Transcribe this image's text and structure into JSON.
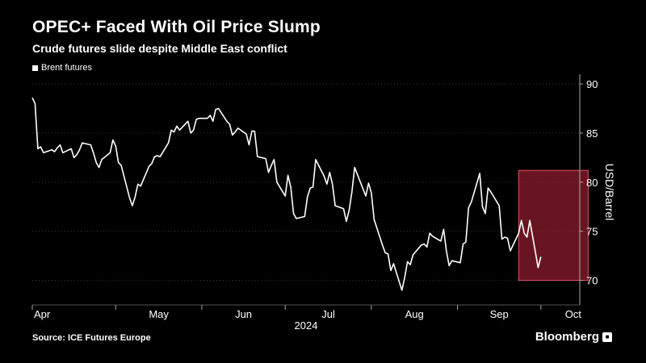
{
  "title": "OPEC+ Faced With Oil Price Slump",
  "subtitle": "Crude futures slide despite Middle East conflict",
  "source": "Source: ICE Futures Europe",
  "brand": "Bloomberg",
  "colors": {
    "background": "#000000",
    "line": "#ffffff",
    "grid": "#3a3a3a",
    "highlight_fill": "#8c1c2c",
    "highlight_stroke": "#e0506a"
  },
  "chart_data": {
    "type": "line",
    "title": "OPEC+ Faced With Oil Price Slump",
    "subtitle": "Crude futures slide despite Middle East conflict",
    "ylabel": "USD/Barrel",
    "xlabel": "2024",
    "ylim": [
      67.5,
      90.5
    ],
    "y_ticks": [
      70,
      75,
      80,
      85,
      90
    ],
    "y_axis_side": "right",
    "grid": "horizontal dotted",
    "legend_placement": "top-left",
    "x_tick_labels": [
      {
        "label": "Apr",
        "date": "2024-04-01"
      },
      {
        "label": "May",
        "date": "2024-05-01"
      },
      {
        "label": "Jun",
        "date": "2024-06-01"
      },
      {
        "label": "Jul",
        "date": "2024-07-01"
      },
      {
        "label": "Aug",
        "date": "2024-08-01"
      },
      {
        "label": "Sep",
        "date": "2024-09-01"
      },
      {
        "label": "Oct",
        "date": "2024-10-01"
      }
    ],
    "x_range": [
      "2024-04-01",
      "2024-10-15"
    ],
    "highlight": {
      "x_start": "2024-09-23",
      "x_end": "2024-10-18",
      "y_start": 70.0,
      "y_end": 81.2
    },
    "series": [
      {
        "name": "Brent futures",
        "color": "#ffffff",
        "points": [
          [
            "2024-04-01",
            88.6
          ],
          [
            "2024-04-02",
            88.0
          ],
          [
            "2024-04-03",
            83.4
          ],
          [
            "2024-04-04",
            83.6
          ],
          [
            "2024-04-05",
            83.0
          ],
          [
            "2024-04-08",
            83.3
          ],
          [
            "2024-04-09",
            83.1
          ],
          [
            "2024-04-10",
            83.5
          ],
          [
            "2024-04-11",
            83.8
          ],
          [
            "2024-04-12",
            83.0
          ],
          [
            "2024-04-15",
            83.4
          ],
          [
            "2024-04-16",
            82.5
          ],
          [
            "2024-04-17",
            82.8
          ],
          [
            "2024-04-18",
            83.3
          ],
          [
            "2024-04-19",
            84.0
          ],
          [
            "2024-04-22",
            83.8
          ],
          [
            "2024-04-23",
            83.0
          ],
          [
            "2024-04-24",
            82.0
          ],
          [
            "2024-04-25",
            81.5
          ],
          [
            "2024-04-26",
            82.3
          ],
          [
            "2024-04-29",
            83.0
          ],
          [
            "2024-04-30",
            84.3
          ],
          [
            "2024-05-01",
            83.7
          ],
          [
            "2024-05-02",
            82.0
          ],
          [
            "2024-05-03",
            81.7
          ],
          [
            "2024-05-06",
            78.4
          ],
          [
            "2024-05-07",
            77.6
          ],
          [
            "2024-05-08",
            78.5
          ],
          [
            "2024-05-09",
            79.8
          ],
          [
            "2024-05-10",
            79.6
          ],
          [
            "2024-05-13",
            81.6
          ],
          [
            "2024-05-14",
            81.9
          ],
          [
            "2024-05-15",
            82.6
          ],
          [
            "2024-05-16",
            82.7
          ],
          [
            "2024-05-17",
            82.6
          ],
          [
            "2024-05-20",
            84.0
          ],
          [
            "2024-05-21",
            85.3
          ],
          [
            "2024-05-22",
            85.1
          ],
          [
            "2024-05-23",
            85.7
          ],
          [
            "2024-05-24",
            85.3
          ],
          [
            "2024-05-27",
            86.2
          ],
          [
            "2024-05-28",
            85.0
          ],
          [
            "2024-05-29",
            85.3
          ],
          [
            "2024-05-30",
            86.4
          ],
          [
            "2024-05-31",
            86.5
          ],
          [
            "2024-06-03",
            86.5
          ],
          [
            "2024-06-04",
            86.8
          ],
          [
            "2024-06-05",
            86.2
          ],
          [
            "2024-06-06",
            87.4
          ],
          [
            "2024-06-07",
            87.5
          ],
          [
            "2024-06-10",
            86.2
          ],
          [
            "2024-06-11",
            85.9
          ],
          [
            "2024-06-12",
            84.8
          ],
          [
            "2024-06-13",
            85.1
          ],
          [
            "2024-06-14",
            85.5
          ],
          [
            "2024-06-17",
            84.9
          ],
          [
            "2024-06-18",
            83.8
          ],
          [
            "2024-06-19",
            85.2
          ],
          [
            "2024-06-20",
            85.2
          ],
          [
            "2024-06-21",
            82.6
          ],
          [
            "2024-06-24",
            82.4
          ],
          [
            "2024-06-25",
            81.0
          ],
          [
            "2024-06-26",
            81.7
          ],
          [
            "2024-06-27",
            82.3
          ],
          [
            "2024-06-28",
            80.0
          ],
          [
            "2024-07-01",
            78.6
          ],
          [
            "2024-07-02",
            80.7
          ],
          [
            "2024-07-03",
            79.5
          ],
          [
            "2024-07-04",
            76.8
          ],
          [
            "2024-07-05",
            76.3
          ],
          [
            "2024-07-08",
            76.5
          ],
          [
            "2024-07-09",
            78.5
          ],
          [
            "2024-07-10",
            79.4
          ],
          [
            "2024-07-11",
            79.5
          ],
          [
            "2024-07-12",
            82.3
          ],
          [
            "2024-07-15",
            80.6
          ],
          [
            "2024-07-16",
            79.8
          ],
          [
            "2024-07-17",
            81.0
          ],
          [
            "2024-07-18",
            79.8
          ],
          [
            "2024-07-19",
            77.6
          ],
          [
            "2024-07-22",
            77.3
          ],
          [
            "2024-07-23",
            76.0
          ],
          [
            "2024-07-24",
            77.1
          ],
          [
            "2024-07-25",
            79.0
          ],
          [
            "2024-07-26",
            81.5
          ],
          [
            "2024-07-29",
            79.3
          ],
          [
            "2024-07-30",
            78.6
          ],
          [
            "2024-07-31",
            79.9
          ],
          [
            "2024-08-01",
            78.9
          ],
          [
            "2024-08-02",
            76.2
          ],
          [
            "2024-08-05",
            73.6
          ],
          [
            "2024-08-06",
            72.8
          ],
          [
            "2024-08-07",
            72.7
          ],
          [
            "2024-08-08",
            71.0
          ],
          [
            "2024-08-09",
            71.7
          ],
          [
            "2024-08-12",
            69.0
          ],
          [
            "2024-08-13",
            70.3
          ],
          [
            "2024-08-14",
            71.9
          ],
          [
            "2024-08-15",
            71.6
          ],
          [
            "2024-08-16",
            72.6
          ],
          [
            "2024-08-19",
            73.6
          ],
          [
            "2024-08-20",
            73.7
          ],
          [
            "2024-08-21",
            73.4
          ],
          [
            "2024-08-22",
            74.8
          ],
          [
            "2024-08-23",
            74.5
          ],
          [
            "2024-08-26",
            74.0
          ],
          [
            "2024-08-27",
            75.2
          ],
          [
            "2024-08-28",
            73.0
          ],
          [
            "2024-08-29",
            71.5
          ],
          [
            "2024-08-30",
            72.0
          ],
          [
            "2024-09-02",
            71.8
          ],
          [
            "2024-09-03",
            73.7
          ],
          [
            "2024-09-04",
            73.9
          ],
          [
            "2024-09-05",
            77.4
          ],
          [
            "2024-09-06",
            78.0
          ],
          [
            "2024-09-09",
            80.9
          ],
          [
            "2024-09-10",
            77.5
          ],
          [
            "2024-09-11",
            76.8
          ],
          [
            "2024-09-12",
            79.4
          ],
          [
            "2024-09-13",
            79.0
          ],
          [
            "2024-09-16",
            77.6
          ],
          [
            "2024-09-17",
            74.2
          ],
          [
            "2024-09-18",
            74.4
          ],
          [
            "2024-09-19",
            74.3
          ],
          [
            "2024-09-20",
            73.0
          ],
          [
            "2024-09-23",
            74.8
          ],
          [
            "2024-09-24",
            76.1
          ],
          [
            "2024-09-25",
            74.8
          ],
          [
            "2024-09-26",
            74.4
          ],
          [
            "2024-09-27",
            76.1
          ],
          [
            "2024-09-30",
            71.3
          ],
          [
            "2024-10-01",
            72.4
          ]
        ]
      }
    ]
  }
}
